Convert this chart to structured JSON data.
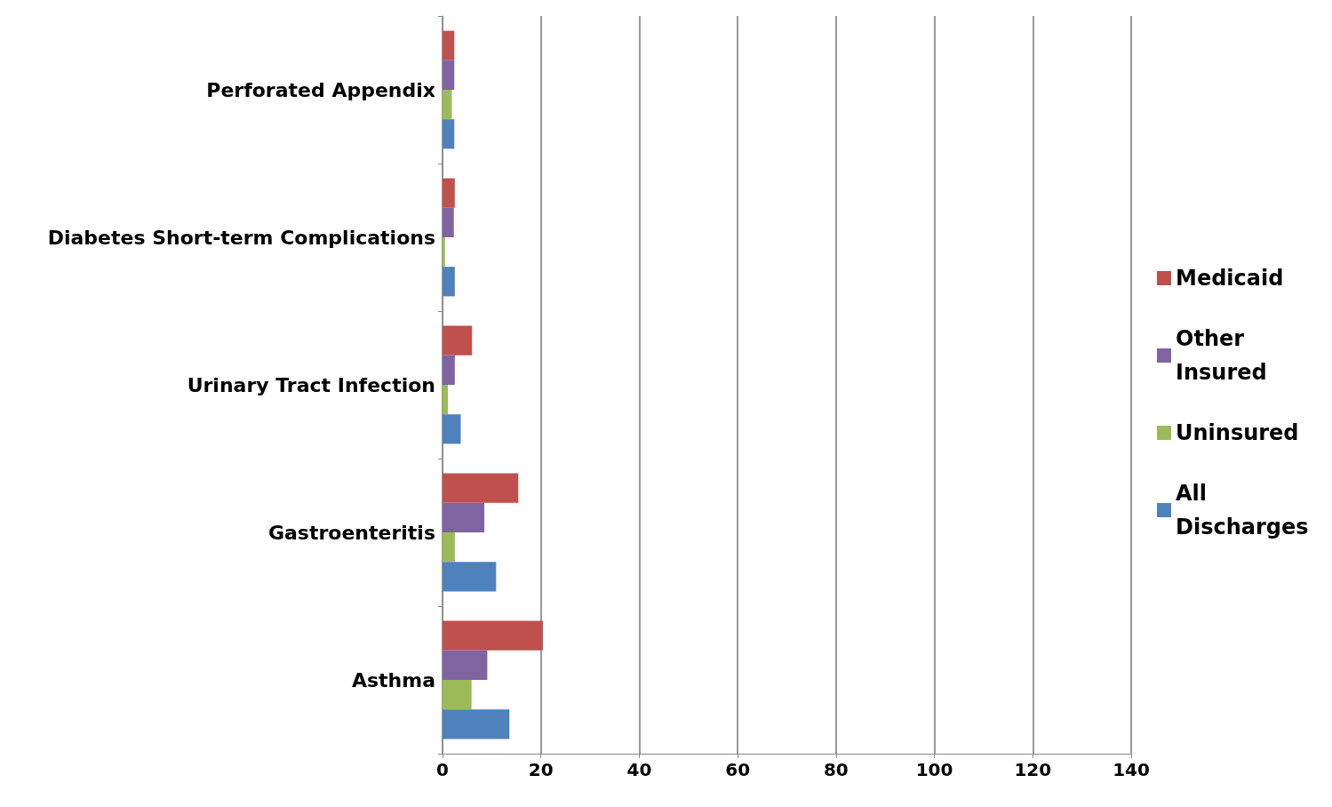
{
  "chart_data": {
    "type": "bar",
    "orientation": "horizontal",
    "categories": [
      "Perforated Appendix",
      "Diabetes Short-term Complications",
      "Urinary Tract Infection",
      "Gastroenteritis",
      "Asthma"
    ],
    "series": [
      {
        "name": "Medicaid",
        "color": "#c0504d",
        "values": [
          2.4,
          2.5,
          6,
          15.4,
          20.4
        ]
      },
      {
        "name": "Other Insured",
        "color": "#8064a2",
        "values": [
          2.4,
          2.3,
          2.5,
          8.5,
          9.1
        ]
      },
      {
        "name": "Uninsured",
        "color": "#9bbb59",
        "values": [
          1.9,
          0.5,
          1.1,
          2.5,
          5.9
        ]
      },
      {
        "name": "All Discharges",
        "color": "#4f81bd",
        "values": [
          2.4,
          2.5,
          3.7,
          10.9,
          13.6
        ]
      }
    ],
    "xlim": [
      0,
      140
    ],
    "xticks": [
      0,
      20,
      40,
      60,
      80,
      100,
      120,
      140
    ],
    "grid": "x",
    "legend": "right"
  }
}
